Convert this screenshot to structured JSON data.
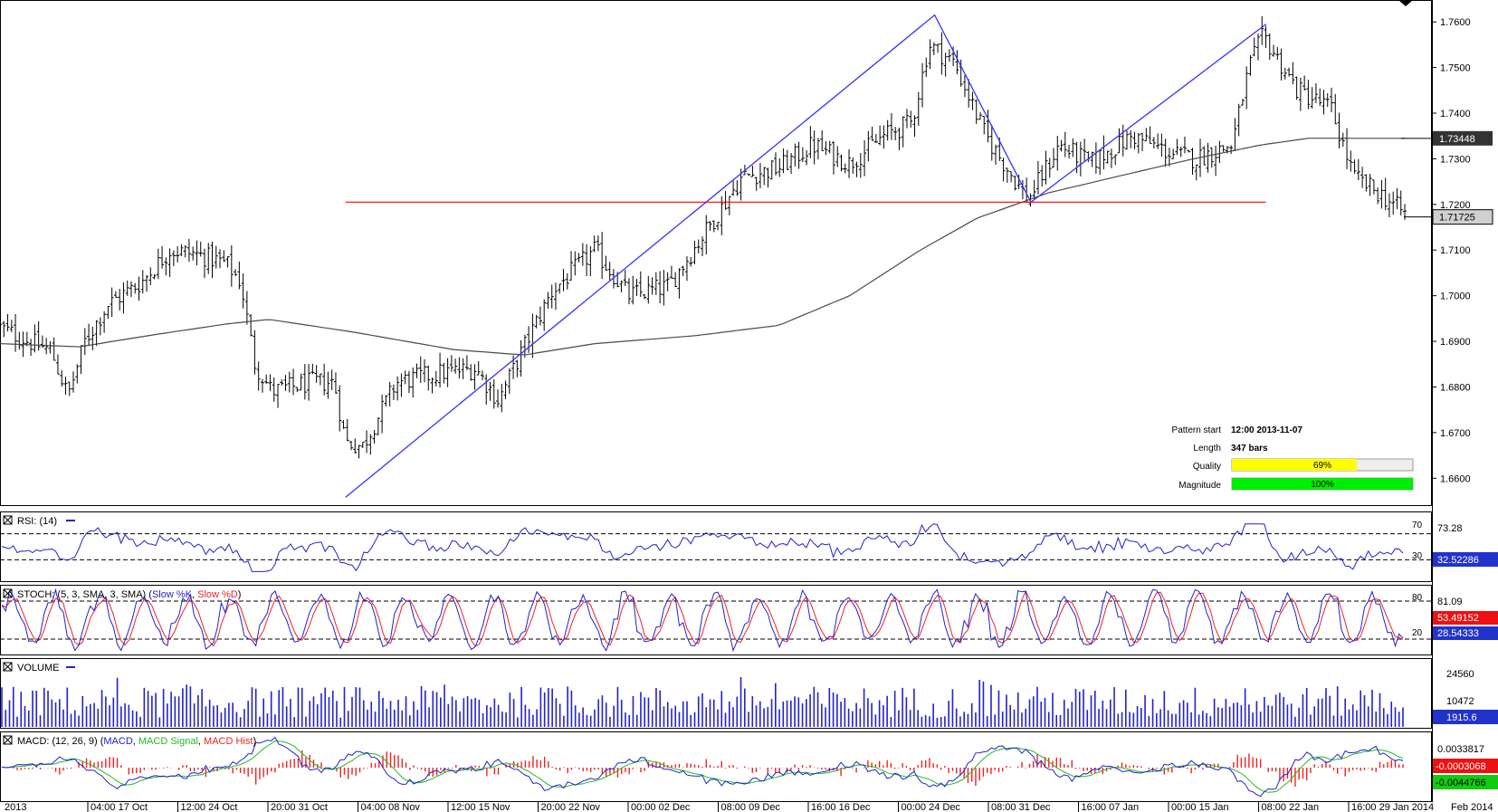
{
  "chart_data": {
    "type": "ohlc",
    "title": "",
    "price_axis": {
      "ticks": [
        "1.7600",
        "1.7500",
        "1.7400",
        "1.7300",
        "1.7200",
        "1.7100",
        "1.7000",
        "1.6900",
        "1.6800",
        "1.6700",
        "1.6600"
      ],
      "ylim": [
        1.6545,
        1.764
      ],
      "current_price": "1.71725",
      "ma_price": "1.73448"
    },
    "date_axis": [
      "2013",
      "04:00 17 Oct",
      "12:00 24 Oct",
      "20:00 31 Oct",
      "04:00 08 Nov",
      "12:00 15 Nov",
      "20:00 22 Nov",
      "00:00 02 Dec",
      "08:00 09 Dec",
      "16:00 16 Dec",
      "00:00 24 Dec",
      "08:00 31 Dec",
      "16:00 07 Jan",
      "00:00 15 Jan",
      "08:00 22 Jan",
      "16:00 29 Jan 2014",
      "Feb 2014"
    ],
    "n_bars": 365,
    "price_keypoints": [
      [
        0,
        1.693
      ],
      [
        10,
        1.69
      ],
      [
        18,
        1.688
      ],
      [
        24,
        1.678
      ],
      [
        30,
        1.69
      ],
      [
        38,
        1.698
      ],
      [
        50,
        1.703
      ],
      [
        60,
        1.71
      ],
      [
        70,
        1.709
      ],
      [
        80,
        1.707
      ],
      [
        85,
        1.703
      ],
      [
        90,
        1.685
      ],
      [
        96,
        1.679
      ],
      [
        110,
        1.681
      ],
      [
        118,
        1.681
      ],
      [
        122,
        1.668
      ],
      [
        128,
        1.667
      ],
      [
        140,
        1.681
      ],
      [
        155,
        1.683
      ],
      [
        168,
        1.684
      ],
      [
        176,
        1.677
      ],
      [
        186,
        1.69
      ],
      [
        195,
        1.701
      ],
      [
        210,
        1.71
      ],
      [
        222,
        1.7
      ],
      [
        236,
        1.702
      ],
      [
        248,
        1.713
      ],
      [
        262,
        1.726
      ],
      [
        275,
        1.728
      ],
      [
        287,
        1.733
      ],
      [
        300,
        1.729
      ],
      [
        312,
        1.735
      ],
      [
        322,
        1.738
      ],
      [
        328,
        1.755
      ],
      [
        337,
        1.751
      ],
      [
        348,
        1.735
      ],
      [
        363,
        1.721
      ],
      [
        374,
        1.733
      ],
      [
        385,
        1.729
      ],
      [
        400,
        1.735
      ],
      [
        414,
        1.731
      ],
      [
        422,
        1.73
      ],
      [
        435,
        1.733
      ],
      [
        441,
        1.75
      ],
      [
        446,
        1.757
      ],
      [
        458,
        1.745
      ],
      [
        470,
        1.741
      ],
      [
        478,
        1.726
      ],
      [
        488,
        1.722
      ],
      [
        496,
        1.718
      ]
    ],
    "ma_keypoints": [
      [
        0,
        1.6895
      ],
      [
        28,
        1.6888
      ],
      [
        55,
        1.6915
      ],
      [
        80,
        1.6938
      ],
      [
        95,
        1.6948
      ],
      [
        125,
        1.692
      ],
      [
        160,
        1.6882
      ],
      [
        185,
        1.687
      ],
      [
        210,
        1.6895
      ],
      [
        245,
        1.6912
      ],
      [
        275,
        1.6935
      ],
      [
        300,
        1.7
      ],
      [
        325,
        1.71
      ],
      [
        345,
        1.717
      ],
      [
        370,
        1.7225
      ],
      [
        395,
        1.7262
      ],
      [
        420,
        1.7298
      ],
      [
        445,
        1.733
      ],
      [
        462,
        1.7345
      ],
      [
        496,
        1.73448
      ]
    ],
    "pattern": {
      "zigzag": [
        [
          122,
          1.6558
        ],
        [
          330,
          1.7615
        ],
        [
          364,
          1.7205
        ],
        [
          447,
          1.7595
        ]
      ],
      "support_level": 1.7205,
      "support_range": [
        122,
        447
      ],
      "info": {
        "pattern_start_label": "Pattern start",
        "pattern_start": "12:00 2013-11-07",
        "length_label": "Length",
        "length": "347 bars",
        "quality_label": "Quality",
        "quality": 69,
        "quality_text": "69%",
        "magnitude_label": "Magnitude",
        "magnitude": 100,
        "magnitude_text": "100%"
      }
    },
    "rsi": {
      "title": "RSI: (14)",
      "levels": [
        70,
        30
      ],
      "level_labels": [
        "70",
        "30"
      ],
      "axis_label": "73.28",
      "current": "32.52286"
    },
    "stoch": {
      "title_prefix": "STOCH: (5, 3, SMA, 3, SMA)",
      "k_label": "Slow %K",
      "comma": ",",
      "d_label": "Slow %D",
      "levels": [
        80,
        20
      ],
      "level_labels": [
        "80",
        "20"
      ],
      "axis_label": "81.09",
      "current_d": "53.49152",
      "current_k": "28.54333"
    },
    "volume": {
      "title": "VOLUME",
      "ticks": [
        "24560",
        "10472"
      ],
      "current": "1915.6"
    },
    "macd": {
      "title_prefix": "MACD: (12, 26, 9)",
      "macd_label": "MACD",
      "signal_label": "MACD Signal",
      "hist_label": "MACD Hist",
      "comma": ",",
      "axis_label": "0.0033817",
      "current_hist": "-0.0003068",
      "current_signal": "-0.0044766"
    },
    "colors": {
      "bars": "#000000",
      "ma": "#4a4a4a",
      "zigzag": "#3333ff",
      "support": "#ff0000",
      "rsi": "#2222cc",
      "stoch_k": "#2222cc",
      "stoch_d": "#ee2222",
      "volume": "#2222cc",
      "macd": "#2222cc",
      "signal": "#22bb22",
      "hist": "#ee2222",
      "quality": "#ffff00",
      "magnitude": "#00ee00",
      "label_red": "#ee1111",
      "label_green": "#11cc11",
      "label_blue": "#2233cc"
    }
  }
}
